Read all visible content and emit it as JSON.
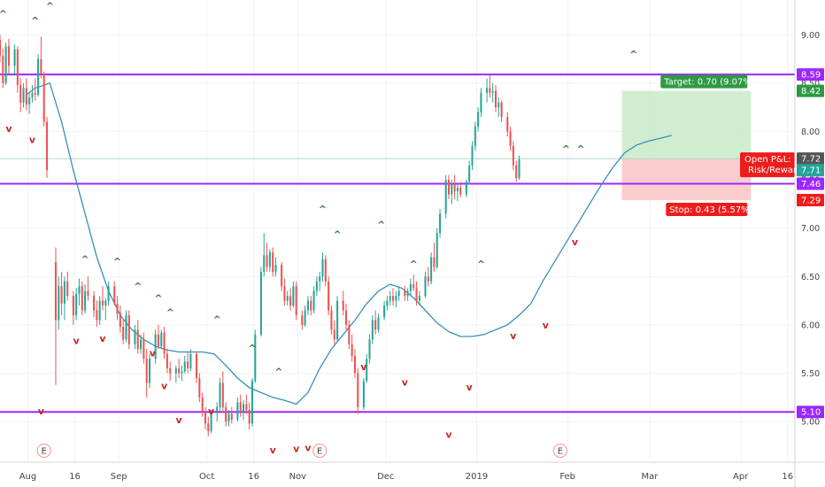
{
  "colors": {
    "up": "#26a69a",
    "down": "#ef5350",
    "ma": "#3a8fb7",
    "level": "#9c27ff",
    "marker_up": "#2e7d32",
    "marker_down": "#c62828",
    "target_zone": "#c8eac8",
    "stop_zone": "#f8c4c4"
  },
  "chart_data": {
    "type": "candlestick",
    "x_ticks": [
      "Aug",
      "16",
      "Sep",
      "Oct",
      "16",
      "Nov",
      "Dec",
      "2019",
      "Feb",
      "Mar",
      "Apr",
      "16"
    ],
    "x_tick_pos": [
      0.5,
      16.5,
      31.5,
      61.5,
      77.5,
      92.5,
      122.5,
      153.5,
      184.5,
      212.5,
      243.5,
      259.5
    ],
    "y_ticks": [
      "9.00",
      "8.50",
      "8.00",
      "7.50",
      "7.00",
      "6.50",
      "6.00",
      "5.50",
      "5.00"
    ],
    "y_range": [
      4.58,
      9.36
    ],
    "x_range": [
      -9,
      262
    ],
    "levels": [
      8.59,
      7.46,
      5.1
    ],
    "level_labels": [
      "8.59",
      "7.46",
      "5.10"
    ],
    "position": {
      "start_x": 203,
      "end_x": 247,
      "entry": 7.72,
      "target": 8.42,
      "stop": 7.29,
      "target_label": "Target: 0.70 (9.07%)",
      "stop_label": "Stop: 0.43 (5.57%)",
      "open_pnl_label": "Open P&L: −0",
      "rr_label": "Risk/Reward",
      "entry_tag": "7.72",
      "target_tag": "8.42",
      "stop_tag": "7.29",
      "price_tag": "7.71"
    },
    "earnings_x": [
      6,
      100,
      182
    ],
    "earnings_label": "E",
    "marker_up_label": "^",
    "marker_down_label": "v",
    "up_markers": [
      [
        -8,
        9.22
      ],
      [
        3,
        9.15
      ],
      [
        8,
        9.3
      ],
      [
        20,
        6.68
      ],
      [
        31,
        6.66
      ],
      [
        38,
        6.4
      ],
      [
        45,
        6.28
      ],
      [
        49,
        6.13
      ],
      [
        65,
        6.06
      ],
      [
        77,
        5.76
      ],
      [
        86,
        5.52
      ],
      [
        101,
        7.2
      ],
      [
        106,
        6.94
      ],
      [
        121,
        7.04
      ],
      [
        132,
        6.63
      ],
      [
        155,
        6.63
      ],
      [
        184,
        7.82
      ],
      [
        189,
        7.82
      ],
      [
        207,
        8.8
      ]
    ],
    "down_markers": [
      [
        -6,
        8.03
      ],
      [
        2,
        7.92
      ],
      [
        5,
        5.11
      ],
      [
        17,
        5.84
      ],
      [
        26,
        5.86
      ],
      [
        43,
        5.71
      ],
      [
        47,
        5.37
      ],
      [
        52,
        5.02
      ],
      [
        63,
        5.11
      ],
      [
        84,
        4.71
      ],
      [
        92,
        4.72
      ],
      [
        96,
        4.73
      ],
      [
        115,
        5.57
      ],
      [
        129,
        5.41
      ],
      [
        144,
        4.87
      ],
      [
        151,
        5.36
      ],
      [
        166,
        5.89
      ],
      [
        177,
        6.0
      ],
      [
        187,
        6.86
      ]
    ],
    "ma": [
      [
        0,
        8.38
      ],
      [
        3,
        8.45
      ],
      [
        8,
        8.5
      ],
      [
        12,
        8.1
      ],
      [
        16,
        7.6
      ],
      [
        20,
        7.15
      ],
      [
        24,
        6.7
      ],
      [
        28,
        6.35
      ],
      [
        32,
        6.1
      ],
      [
        36,
        5.95
      ],
      [
        40,
        5.85
      ],
      [
        44,
        5.78
      ],
      [
        48,
        5.74
      ],
      [
        52,
        5.72
      ],
      [
        56,
        5.72
      ],
      [
        60,
        5.72
      ],
      [
        64,
        5.7
      ],
      [
        68,
        5.58
      ],
      [
        72,
        5.45
      ],
      [
        76,
        5.35
      ],
      [
        80,
        5.3
      ],
      [
        84,
        5.25
      ],
      [
        88,
        5.22
      ],
      [
        92,
        5.18
      ],
      [
        96,
        5.3
      ],
      [
        100,
        5.55
      ],
      [
        104,
        5.75
      ],
      [
        108,
        5.9
      ],
      [
        112,
        6.05
      ],
      [
        116,
        6.22
      ],
      [
        120,
        6.35
      ],
      [
        124,
        6.42
      ],
      [
        128,
        6.38
      ],
      [
        132,
        6.28
      ],
      [
        136,
        6.15
      ],
      [
        140,
        6.02
      ],
      [
        144,
        5.93
      ],
      [
        148,
        5.88
      ],
      [
        152,
        5.88
      ],
      [
        156,
        5.9
      ],
      [
        160,
        5.95
      ],
      [
        164,
        6.0
      ],
      [
        168,
        6.1
      ],
      [
        172,
        6.22
      ],
      [
        176,
        6.45
      ],
      [
        180,
        6.65
      ],
      [
        184,
        6.85
      ],
      [
        188,
        7.05
      ],
      [
        192,
        7.25
      ],
      [
        196,
        7.45
      ],
      [
        200,
        7.63
      ],
      [
        204,
        7.78
      ],
      [
        208,
        7.86
      ],
      [
        212,
        7.9
      ],
      [
        216,
        7.93
      ],
      [
        220,
        7.96
      ]
    ],
    "candles": [
      [
        -9,
        8.95,
        9.0,
        8.72,
        8.78
      ],
      [
        -8,
        8.78,
        8.86,
        8.45,
        8.5
      ],
      [
        -7,
        8.5,
        8.92,
        8.48,
        8.88
      ],
      [
        -6,
        8.88,
        8.96,
        8.6,
        8.68
      ],
      [
        -4,
        8.68,
        8.9,
        8.58,
        8.85
      ],
      [
        -3,
        8.85,
        8.88,
        8.4,
        8.48
      ],
      [
        -2,
        8.48,
        8.55,
        8.2,
        8.3
      ],
      [
        -1,
        8.3,
        8.5,
        8.25,
        8.45
      ],
      [
        0,
        8.45,
        8.55,
        8.22,
        8.28
      ],
      [
        1,
        8.28,
        8.4,
        8.18,
        8.35
      ],
      [
        2,
        8.35,
        8.48,
        8.3,
        8.4
      ],
      [
        3,
        8.4,
        8.55,
        8.32,
        8.38
      ],
      [
        4,
        8.38,
        8.8,
        8.36,
        8.75
      ],
      [
        5,
        8.75,
        8.98,
        8.55,
        8.6
      ],
      [
        6,
        8.6,
        8.62,
        8.05,
        8.1
      ],
      [
        7,
        8.1,
        8.15,
        7.52,
        7.6
      ],
      [
        10,
        6.65,
        6.8,
        5.38,
        6.05
      ],
      [
        11,
        6.05,
        6.5,
        5.95,
        6.4
      ],
      [
        12,
        6.4,
        6.55,
        6.1,
        6.22
      ],
      [
        13,
        6.22,
        6.5,
        6.05,
        6.45
      ],
      [
        14,
        6.45,
        6.55,
        6.25,
        6.3
      ],
      [
        16,
        6.3,
        6.35,
        6.0,
        6.1
      ],
      [
        17,
        6.1,
        6.38,
        6.05,
        6.32
      ],
      [
        18,
        6.32,
        6.48,
        6.2,
        6.4
      ],
      [
        19,
        6.4,
        6.45,
        6.1,
        6.15
      ],
      [
        20,
        6.15,
        6.42,
        6.12,
        6.35
      ],
      [
        21,
        6.35,
        6.5,
        6.25,
        6.3
      ],
      [
        23,
        6.3,
        6.35,
        6.08,
        6.15
      ],
      [
        24,
        6.15,
        6.25,
        5.98,
        6.05
      ],
      [
        25,
        6.05,
        6.3,
        6.0,
        6.25
      ],
      [
        26,
        6.25,
        6.4,
        6.15,
        6.2
      ],
      [
        27,
        6.2,
        6.28,
        6.05,
        6.25
      ],
      [
        28,
        6.25,
        6.45,
        6.2,
        6.4
      ],
      [
        30,
        6.4,
        6.45,
        6.2,
        6.22
      ],
      [
        31,
        6.22,
        6.3,
        6.05,
        6.12
      ],
      [
        32,
        6.12,
        6.2,
        5.92,
        5.98
      ],
      [
        33,
        5.98,
        6.05,
        5.8,
        5.85
      ],
      [
        34,
        5.85,
        6.15,
        5.82,
        6.1
      ],
      [
        35,
        6.1,
        6.15,
        5.75,
        5.8
      ],
      [
        37,
        5.8,
        6.0,
        5.75,
        5.95
      ],
      [
        38,
        5.95,
        6.05,
        5.7,
        5.75
      ],
      [
        39,
        5.75,
        5.9,
        5.7,
        5.85
      ],
      [
        40,
        5.85,
        5.92,
        5.6,
        5.65
      ],
      [
        41,
        5.65,
        5.75,
        5.25,
        5.4
      ],
      [
        42,
        5.4,
        5.7,
        5.35,
        5.65
      ],
      [
        44,
        5.65,
        5.95,
        5.6,
        5.9
      ],
      [
        45,
        5.9,
        6.0,
        5.75,
        5.78
      ],
      [
        46,
        5.78,
        5.95,
        5.75,
        5.92
      ],
      [
        47,
        5.92,
        5.98,
        5.65,
        5.7
      ],
      [
        48,
        5.7,
        5.75,
        5.5,
        5.55
      ],
      [
        49,
        5.55,
        5.62,
        5.42,
        5.5
      ],
      [
        51,
        5.5,
        5.58,
        5.4,
        5.55
      ],
      [
        52,
        5.55,
        5.65,
        5.45,
        5.5
      ],
      [
        53,
        5.5,
        5.58,
        5.42,
        5.52
      ],
      [
        54,
        5.52,
        5.68,
        5.5,
        5.62
      ],
      [
        55,
        5.62,
        5.72,
        5.5,
        5.55
      ],
      [
        56,
        5.55,
        5.75,
        5.52,
        5.7
      ],
      [
        58,
        5.7,
        5.72,
        5.4,
        5.45
      ],
      [
        59,
        5.45,
        5.5,
        5.2,
        5.25
      ],
      [
        60,
        5.25,
        5.3,
        5.05,
        5.1
      ],
      [
        61,
        5.1,
        5.15,
        4.92,
        4.98
      ],
      [
        62,
        4.98,
        5.05,
        4.85,
        4.9
      ],
      [
        63,
        4.9,
        5.12,
        4.88,
        5.1
      ],
      [
        65,
        5.1,
        5.2,
        5.0,
        5.15
      ],
      [
        66,
        5.15,
        5.45,
        5.1,
        5.4
      ],
      [
        67,
        5.4,
        5.52,
        5.1,
        5.15
      ],
      [
        68,
        5.15,
        5.2,
        4.95,
        5.0
      ],
      [
        69,
        5.0,
        5.12,
        4.95,
        5.08
      ],
      [
        70,
        5.08,
        5.15,
        4.98,
        5.02
      ],
      [
        72,
        5.02,
        5.25,
        5.0,
        5.2
      ],
      [
        73,
        5.2,
        5.28,
        5.05,
        5.1
      ],
      [
        74,
        5.1,
        5.22,
        5.02,
        5.18
      ],
      [
        75,
        5.18,
        5.28,
        5.08,
        5.12
      ],
      [
        76,
        5.12,
        5.2,
        4.92,
        4.98
      ],
      [
        77,
        4.98,
        5.45,
        4.95,
        5.42
      ],
      [
        78,
        5.42,
        5.95,
        5.4,
        5.9
      ],
      [
        80,
        5.9,
        6.6,
        5.88,
        6.55
      ],
      [
        81,
        6.55,
        6.95,
        6.5,
        6.72
      ],
      [
        82,
        6.72,
        6.85,
        6.55,
        6.6
      ],
      [
        83,
        6.6,
        6.78,
        6.55,
        6.75
      ],
      [
        84,
        6.75,
        6.8,
        6.5,
        6.55
      ],
      [
        85,
        6.55,
        6.7,
        6.5,
        6.62
      ],
      [
        87,
        6.62,
        6.65,
        6.35,
        6.4
      ],
      [
        88,
        6.4,
        6.48,
        6.2,
        6.25
      ],
      [
        89,
        6.25,
        6.35,
        6.2,
        6.3
      ],
      [
        90,
        6.3,
        6.38,
        6.15,
        6.2
      ],
      [
        91,
        6.2,
        6.45,
        6.18,
        6.4
      ],
      [
        92,
        6.4,
        6.45,
        6.05,
        6.1
      ],
      [
        94,
        6.1,
        6.15,
        5.95,
        6.0
      ],
      [
        95,
        6.0,
        6.2,
        5.98,
        6.15
      ],
      [
        96,
        6.15,
        6.3,
        6.1,
        6.25
      ],
      [
        97,
        6.25,
        6.3,
        6.1,
        6.15
      ],
      [
        98,
        6.15,
        6.4,
        6.12,
        6.35
      ],
      [
        99,
        6.35,
        6.5,
        6.3,
        6.45
      ],
      [
        100,
        6.45,
        6.55,
        6.35,
        6.5
      ],
      [
        101,
        6.5,
        6.75,
        6.45,
        6.68
      ],
      [
        102,
        6.68,
        6.72,
        6.4,
        6.45
      ],
      [
        103,
        6.45,
        6.5,
        6.1,
        6.15
      ],
      [
        104,
        6.15,
        6.2,
        5.9,
        5.95
      ],
      [
        105,
        5.95,
        6.05,
        5.8,
        5.85
      ],
      [
        106,
        5.85,
        6.3,
        5.82,
        6.25
      ],
      [
        108,
        6.25,
        6.35,
        6.1,
        6.15
      ],
      [
        109,
        6.15,
        6.22,
        5.95,
        6.0
      ],
      [
        110,
        6.0,
        6.05,
        5.75,
        5.8
      ],
      [
        111,
        5.8,
        5.9,
        5.62,
        5.68
      ],
      [
        112,
        5.68,
        5.75,
        5.45,
        5.5
      ],
      [
        113,
        5.5,
        5.55,
        5.08,
        5.15
      ],
      [
        115,
        5.15,
        5.45,
        5.12,
        5.42
      ],
      [
        116,
        5.42,
        5.7,
        5.4,
        5.65
      ],
      [
        117,
        5.65,
        5.9,
        5.6,
        5.85
      ],
      [
        118,
        5.85,
        6.1,
        5.8,
        6.05
      ],
      [
        119,
        6.05,
        6.15,
        5.9,
        5.95
      ],
      [
        120,
        5.95,
        6.12,
        5.92,
        6.08
      ],
      [
        122,
        6.08,
        6.25,
        6.05,
        6.2
      ],
      [
        123,
        6.2,
        6.3,
        6.15,
        6.25
      ],
      [
        124,
        6.25,
        6.35,
        6.2,
        6.3
      ],
      [
        125,
        6.3,
        6.38,
        6.2,
        6.25
      ],
      [
        126,
        6.25,
        6.35,
        6.18,
        6.3
      ],
      [
        127,
        6.3,
        6.4,
        6.25,
        6.35
      ],
      [
        129,
        6.35,
        6.4,
        6.25,
        6.3
      ],
      [
        130,
        6.3,
        6.38,
        6.25,
        6.35
      ],
      [
        131,
        6.35,
        6.48,
        6.3,
        6.42
      ],
      [
        132,
        6.42,
        6.52,
        6.35,
        6.38
      ],
      [
        133,
        6.38,
        6.45,
        6.2,
        6.25
      ],
      [
        134,
        6.25,
        6.35,
        6.2,
        6.3
      ],
      [
        136,
        6.3,
        6.55,
        6.28,
        6.5
      ],
      [
        137,
        6.5,
        6.6,
        6.4,
        6.45
      ],
      [
        138,
        6.45,
        6.75,
        6.42,
        6.7
      ],
      [
        139,
        6.7,
        6.85,
        6.55,
        6.6
      ],
      [
        140,
        6.6,
        7.0,
        6.58,
        6.95
      ],
      [
        141,
        6.95,
        7.2,
        6.9,
        7.15
      ],
      [
        143,
        7.15,
        7.55,
        7.1,
        7.5
      ],
      [
        144,
        7.5,
        7.55,
        7.3,
        7.35
      ],
      [
        145,
        7.35,
        7.5,
        7.25,
        7.45
      ],
      [
        146,
        7.45,
        7.55,
        7.3,
        7.38
      ],
      [
        147,
        7.38,
        7.45,
        7.28,
        7.42
      ],
      [
        148,
        7.42,
        7.48,
        7.32,
        7.35
      ],
      [
        150,
        7.35,
        7.5,
        7.32,
        7.48
      ],
      [
        151,
        7.48,
        7.7,
        7.45,
        7.65
      ],
      [
        152,
        7.65,
        7.9,
        7.6,
        7.85
      ],
      [
        153,
        7.85,
        8.1,
        7.8,
        8.05
      ],
      [
        154,
        8.05,
        8.25,
        8.0,
        8.2
      ],
      [
        155,
        8.2,
        8.45,
        8.15,
        8.4
      ],
      [
        157,
        8.4,
        8.55,
        8.3,
        8.45
      ],
      [
        158,
        8.45,
        8.58,
        8.35,
        8.4
      ],
      [
        159,
        8.4,
        8.5,
        8.3,
        8.42
      ],
      [
        160,
        8.42,
        8.48,
        8.2,
        8.25
      ],
      [
        161,
        8.25,
        8.35,
        8.15,
        8.3
      ],
      [
        162,
        8.3,
        8.32,
        8.1,
        8.15
      ],
      [
        164,
        8.15,
        8.2,
        7.95,
        8.0
      ],
      [
        165,
        8.0,
        8.05,
        7.8,
        7.85
      ],
      [
        166,
        7.85,
        7.9,
        7.6,
        7.65
      ],
      [
        167,
        7.65,
        7.7,
        7.48,
        7.52
      ],
      [
        168,
        7.52,
        7.75,
        7.5,
        7.71
      ]
    ]
  }
}
